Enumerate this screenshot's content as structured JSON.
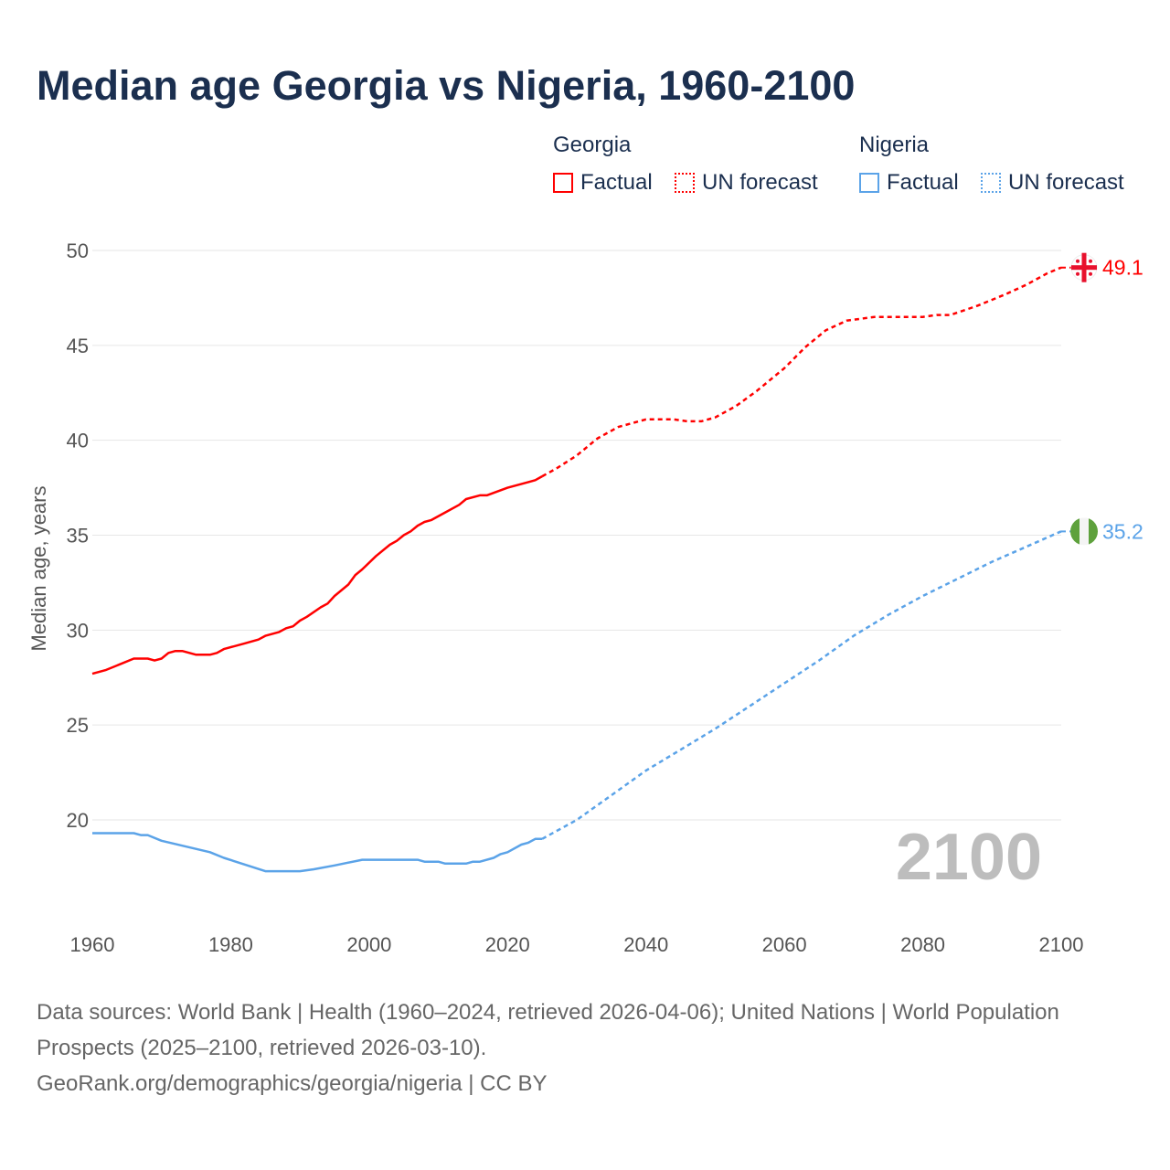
{
  "chart_data": {
    "type": "line",
    "title": "Median age Georgia vs Nigeria, 1960-2100",
    "xlabel": "",
    "ylabel": "Median age, years",
    "xlim": [
      1960,
      2100
    ],
    "ylim": [
      16,
      51
    ],
    "xticks": [
      1960,
      1980,
      2000,
      2020,
      2040,
      2060,
      2080,
      2100
    ],
    "yticks": [
      20,
      25,
      30,
      35,
      40,
      45,
      50
    ],
    "grid": true,
    "legend_position": "top-right",
    "current_year_label": "2100",
    "legend": {
      "groups": [
        {
          "name": "Georgia",
          "items": [
            "Factual",
            "UN forecast"
          ]
        },
        {
          "name": "Nigeria",
          "items": [
            "Factual",
            "UN forecast"
          ]
        }
      ]
    },
    "series": [
      {
        "name": "Georgia - Factual",
        "color": "#ff0000",
        "style": "solid",
        "x": [
          1960,
          1962,
          1964,
          1966,
          1968,
          1969,
          1970,
          1971,
          1972,
          1973,
          1975,
          1977,
          1978,
          1979,
          1982,
          1984,
          1985,
          1987,
          1988,
          1989,
          1990,
          1991,
          1993,
          1994,
          1995,
          1997,
          1998,
          1999,
          2001,
          2003,
          2004,
          2005,
          2006,
          2007,
          2008,
          2009,
          2011,
          2013,
          2014,
          2016,
          2017,
          2020,
          2023,
          2024,
          2025
        ],
        "y": [
          27.7,
          27.9,
          28.2,
          28.5,
          28.5,
          28.4,
          28.5,
          28.8,
          28.9,
          28.9,
          28.7,
          28.7,
          28.8,
          29.0,
          29.3,
          29.5,
          29.7,
          29.9,
          30.1,
          30.2,
          30.5,
          30.7,
          31.2,
          31.4,
          31.8,
          32.4,
          32.9,
          33.2,
          33.9,
          34.5,
          34.7,
          35.0,
          35.2,
          35.5,
          35.7,
          35.8,
          36.2,
          36.6,
          36.9,
          37.1,
          37.1,
          37.5,
          37.8,
          37.9,
          38.1
        ]
      },
      {
        "name": "Georgia - UN forecast",
        "color": "#ff0000",
        "style": "dashed",
        "x": [
          2025,
          2027,
          2030,
          2033,
          2036,
          2040,
          2044,
          2046,
          2048,
          2050,
          2053,
          2056,
          2060,
          2063,
          2066,
          2069,
          2073,
          2080,
          2082,
          2084,
          2088,
          2092,
          2095,
          2098,
          2100
        ],
        "y": [
          38.1,
          38.5,
          39.2,
          40.1,
          40.7,
          41.1,
          41.1,
          41.0,
          41.0,
          41.2,
          41.8,
          42.6,
          43.8,
          44.9,
          45.8,
          46.3,
          46.5,
          46.5,
          46.6,
          46.6,
          47.1,
          47.7,
          48.2,
          48.8,
          49.1
        ]
      },
      {
        "name": "Nigeria - Factual",
        "color": "#5ba3e8",
        "style": "solid",
        "x": [
          1960,
          1966,
          1967,
          1968,
          1970,
          1977,
          1979,
          1985,
          1990,
          1992,
          1995,
          1999,
          2007,
          2008,
          2010,
          2011,
          2014,
          2015,
          2016,
          2018,
          2019,
          2020,
          2022,
          2023,
          2024,
          2025
        ],
        "y": [
          19.3,
          19.3,
          19.2,
          19.2,
          18.9,
          18.3,
          18.0,
          17.3,
          17.3,
          17.4,
          17.6,
          17.9,
          17.9,
          17.8,
          17.8,
          17.7,
          17.7,
          17.8,
          17.8,
          18.0,
          18.2,
          18.3,
          18.7,
          18.8,
          19.0,
          19.0
        ]
      },
      {
        "name": "Nigeria - UN forecast",
        "color": "#5ba3e8",
        "style": "dashed",
        "x": [
          2025,
          2026,
          2030,
          2035,
          2040,
          2045,
          2050,
          2055,
          2060,
          2065,
          2070,
          2075,
          2080,
          2085,
          2090,
          2095,
          2100
        ],
        "y": [
          19.0,
          19.2,
          20.0,
          21.3,
          22.6,
          23.7,
          24.8,
          26.0,
          27.2,
          28.4,
          29.7,
          30.8,
          31.8,
          32.7,
          33.6,
          34.4,
          35.2
        ]
      }
    ],
    "end_labels": [
      {
        "country": "Georgia",
        "value": "49.1",
        "color": "#ff0000",
        "icon": "georgia-flag-icon"
      },
      {
        "country": "Nigeria",
        "value": "35.2",
        "color": "#5ba3e8",
        "icon": "nigeria-flag-icon"
      }
    ]
  },
  "footer": {
    "sources": "Data sources: World Bank | Health (1960–2024, retrieved 2026-04-06); United Nations | World Population Prospects (2025–2100, retrieved 2026-03-10).",
    "credit": "GeoRank.org/demographics/georgia/nigeria | CC BY"
  }
}
